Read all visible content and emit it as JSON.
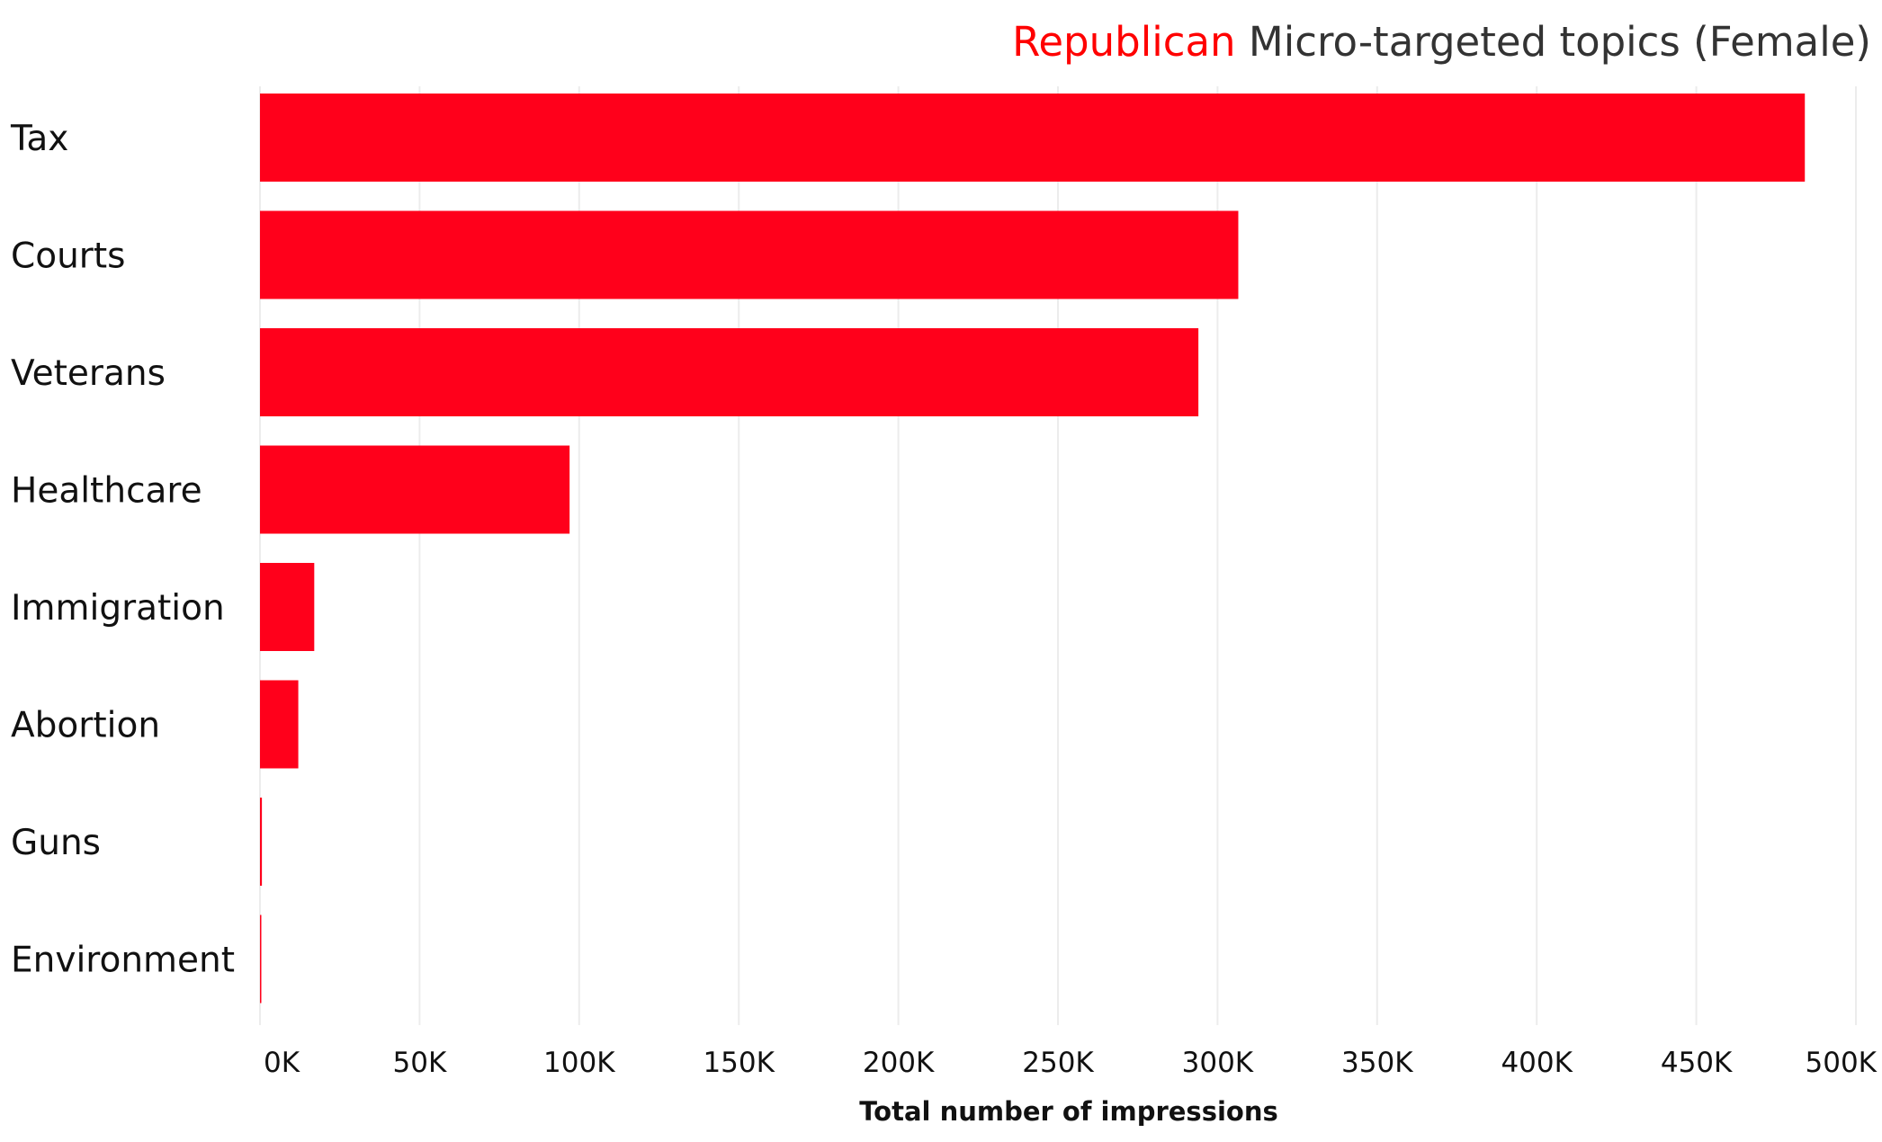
{
  "chart_data": {
    "type": "bar",
    "orientation": "horizontal",
    "title": {
      "highlight": "Republican",
      "rest": "Micro-targeted topics (Female)",
      "highlight_color": "#ff0000",
      "rest_color": "#333333"
    },
    "categories": [
      "Tax",
      "Courts",
      "Veterans",
      "Healthcare",
      "Immigration",
      "Abortion",
      "Guns",
      "Environment"
    ],
    "values": [
      484000,
      306500,
      294000,
      97000,
      17000,
      12000,
      600,
      200
    ],
    "xlabel": "Total number of impressions",
    "ylabel": "",
    "xlim": [
      0,
      500000
    ],
    "ticks": [
      0,
      50000,
      100000,
      150000,
      200000,
      250000,
      300000,
      350000,
      400000,
      450000,
      500000
    ],
    "tick_labels": [
      "0K",
      "50K",
      "100K",
      "150K",
      "200K",
      "250K",
      "300K",
      "350K",
      "400K",
      "450K",
      "500K"
    ],
    "bar_color": "#ff001b",
    "grid": true,
    "gridline_color": "#ececec"
  }
}
